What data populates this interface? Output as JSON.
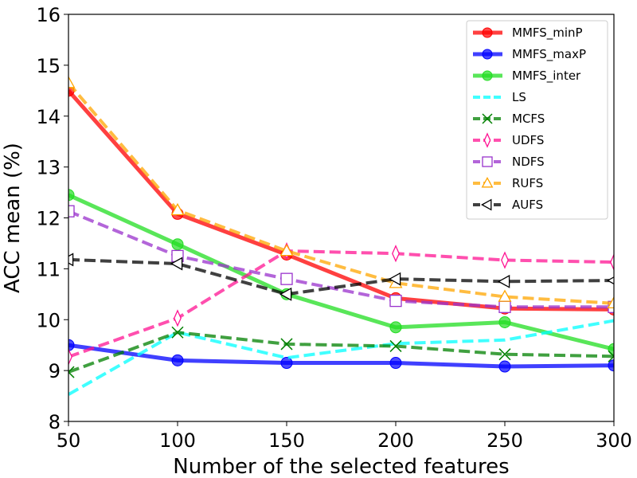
{
  "chart_data": {
    "type": "line",
    "title": "",
    "xlabel": "Number of the selected features",
    "ylabel": "ACC mean (%)",
    "xlim": [
      50,
      300
    ],
    "ylim": [
      8,
      16
    ],
    "xticks": [
      50,
      100,
      150,
      200,
      250,
      300
    ],
    "yticks": [
      8,
      9,
      10,
      11,
      12,
      13,
      14,
      15,
      16
    ],
    "grid": false,
    "legend_position": "top-right",
    "x": [
      50,
      100,
      150,
      200,
      250,
      300
    ],
    "series": [
      {
        "name": "MMFS_minP",
        "color": "#ff0000",
        "dash": "solid",
        "marker": "circle",
        "values": [
          14.5,
          12.08,
          11.28,
          10.42,
          10.22,
          10.2
        ]
      },
      {
        "name": "MMFS_maxP",
        "color": "#0000ff",
        "dash": "solid",
        "marker": "circle",
        "values": [
          9.5,
          9.2,
          9.15,
          9.15,
          9.08,
          9.1
        ]
      },
      {
        "name": "MMFS_inter",
        "color": "#22dd22",
        "dash": "solid",
        "marker": "circle",
        "values": [
          12.45,
          11.48,
          10.5,
          9.85,
          9.95,
          9.42
        ]
      },
      {
        "name": "LS",
        "color": "#00ffff",
        "dash": "dashed",
        "marker": "none",
        "values": [
          8.53,
          9.75,
          9.25,
          9.53,
          9.6,
          9.98
        ]
      },
      {
        "name": "MCFS",
        "color": "#008000",
        "dash": "dashed",
        "marker": "x",
        "values": [
          8.97,
          9.75,
          9.52,
          9.48,
          9.32,
          9.28
        ]
      },
      {
        "name": "UDFS",
        "color": "#ff1493",
        "dash": "dashed",
        "marker": "thin-diamond",
        "values": [
          9.27,
          10.03,
          11.35,
          11.3,
          11.17,
          11.13
        ]
      },
      {
        "name": "NDFS",
        "color": "#9932cc",
        "dash": "dashed",
        "marker": "square",
        "values": [
          12.13,
          11.25,
          10.8,
          10.37,
          10.25,
          10.25
        ]
      },
      {
        "name": "RUFS",
        "color": "#ffa500",
        "dash": "dashed",
        "marker": "triangle-up",
        "values": [
          14.65,
          12.15,
          11.35,
          10.72,
          10.45,
          10.32
        ]
      },
      {
        "name": "AUFS",
        "color": "#000000",
        "dash": "dashed",
        "marker": "triangle-left",
        "values": [
          11.18,
          11.1,
          10.5,
          10.8,
          10.75,
          10.77
        ]
      }
    ]
  }
}
